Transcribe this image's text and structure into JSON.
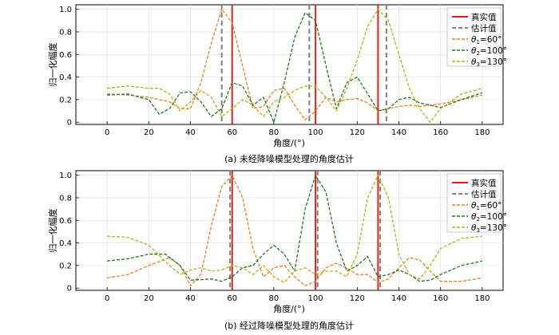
{
  "chart_data": [
    {
      "type": "line",
      "caption": "(a) 未经降噪模型处理的角度估计",
      "xlabel": "角度/(°)",
      "ylabel": "归一化幅度",
      "xlim": [
        -15,
        190
      ],
      "ylim": [
        -0.02,
        1.04
      ],
      "xticks": [
        "0",
        "20",
        "40",
        "60",
        "80",
        "100",
        "120",
        "140",
        "160",
        "180"
      ],
      "yticks": [
        "0",
        "0.2",
        "0.4",
        "0.6",
        "0.8",
        "1.0"
      ],
      "legend_position": "top-right",
      "legend": {
        "true_label": "真实值",
        "est_label": "估计值",
        "series_labels": [
          {
            "sym": "θ",
            "sub": "1",
            "rest": "=60°"
          },
          {
            "sym": "θ",
            "sub": "2",
            "rest": "=100°"
          },
          {
            "sym": "θ",
            "sub": "3",
            "rest": "=130°"
          }
        ]
      },
      "true_values": [
        60,
        100,
        130
      ],
      "estimated_values": [
        55,
        97,
        134
      ],
      "series": [
        {
          "color": "#f07f1a",
          "points": [
            [
              0,
              0.25
            ],
            [
              10,
              0.24
            ],
            [
              20,
              0.22
            ],
            [
              30,
              0.18
            ],
            [
              35,
              0.12
            ],
            [
              40,
              0.12
            ],
            [
              45,
              0.35
            ],
            [
              50,
              0.7
            ],
            [
              55,
              1.0
            ],
            [
              60,
              0.88
            ],
            [
              65,
              0.5
            ],
            [
              70,
              0.12
            ],
            [
              75,
              0.14
            ],
            [
              80,
              0.28
            ],
            [
              85,
              0.3
            ],
            [
              90,
              0.15
            ],
            [
              95,
              0.02
            ],
            [
              100,
              0.1
            ],
            [
              105,
              0.22
            ],
            [
              110,
              0.18
            ],
            [
              115,
              0.2
            ],
            [
              120,
              0.21
            ],
            [
              125,
              0.17
            ],
            [
              130,
              0.1
            ],
            [
              135,
              0.12
            ],
            [
              140,
              0.14
            ],
            [
              145,
              0.15
            ],
            [
              150,
              0.14
            ],
            [
              155,
              0.15
            ],
            [
              160,
              0.16
            ],
            [
              170,
              0.2
            ],
            [
              180,
              0.24
            ]
          ]
        },
        {
          "color": "#1f7a1f",
          "points": [
            [
              0,
              0.24
            ],
            [
              10,
              0.25
            ],
            [
              20,
              0.2
            ],
            [
              25,
              0.07
            ],
            [
              30,
              0.12
            ],
            [
              35,
              0.26
            ],
            [
              40,
              0.27
            ],
            [
              45,
              0.18
            ],
            [
              50,
              0.05
            ],
            [
              55,
              0.12
            ],
            [
              60,
              0.35
            ],
            [
              65,
              0.32
            ],
            [
              70,
              0.15
            ],
            [
              75,
              0.22
            ],
            [
              80,
              0.0
            ],
            [
              85,
              0.35
            ],
            [
              90,
              0.75
            ],
            [
              95,
              0.97
            ],
            [
              100,
              0.9
            ],
            [
              105,
              0.5
            ],
            [
              110,
              0.12
            ],
            [
              115,
              0.35
            ],
            [
              120,
              0.4
            ],
            [
              125,
              0.25
            ],
            [
              130,
              0.1
            ],
            [
              135,
              0.12
            ],
            [
              140,
              0.2
            ],
            [
              145,
              0.22
            ],
            [
              150,
              0.17
            ],
            [
              160,
              0.13
            ],
            [
              170,
              0.2
            ],
            [
              180,
              0.26
            ]
          ]
        },
        {
          "color": "#b5b512",
          "points": [
            [
              0,
              0.3
            ],
            [
              10,
              0.32
            ],
            [
              20,
              0.3
            ],
            [
              25,
              0.3
            ],
            [
              30,
              0.25
            ],
            [
              35,
              0.1
            ],
            [
              40,
              0.18
            ],
            [
              45,
              0.28
            ],
            [
              50,
              0.22
            ],
            [
              55,
              0.05
            ],
            [
              60,
              0.12
            ],
            [
              65,
              0.2
            ],
            [
              70,
              0.15
            ],
            [
              75,
              0.05
            ],
            [
              80,
              0.18
            ],
            [
              85,
              0.22
            ],
            [
              90,
              0.28
            ],
            [
              95,
              0.32
            ],
            [
              100,
              0.32
            ],
            [
              105,
              0.22
            ],
            [
              110,
              0.1
            ],
            [
              115,
              0.3
            ],
            [
              120,
              0.55
            ],
            [
              125,
              0.85
            ],
            [
              130,
              1.0
            ],
            [
              135,
              0.9
            ],
            [
              140,
              0.6
            ],
            [
              145,
              0.3
            ],
            [
              150,
              0.12
            ],
            [
              155,
              0.0
            ],
            [
              160,
              0.12
            ],
            [
              170,
              0.25
            ],
            [
              180,
              0.3
            ]
          ]
        }
      ]
    },
    {
      "type": "line",
      "caption": "(b) 经过降噪模型处理的角度估计",
      "xlabel": "角度/(°)",
      "ylabel": "归一化幅度",
      "xlim": [
        -15,
        190
      ],
      "ylim": [
        -0.02,
        1.04
      ],
      "xticks": [
        "0",
        "20",
        "40",
        "60",
        "80",
        "100",
        "120",
        "140",
        "160",
        "180"
      ],
      "yticks": [
        "0",
        "0.2",
        "0.4",
        "0.6",
        "0.8",
        "1.0"
      ],
      "legend_position": "top-right",
      "legend": {
        "true_label": "真实值",
        "est_label": "估计值",
        "series_labels": [
          {
            "sym": "θ",
            "sub": "1",
            "rest": "=60°"
          },
          {
            "sym": "θ",
            "sub": "2",
            "rest": "=100°"
          },
          {
            "sym": "θ",
            "sub": "3",
            "rest": "=130°"
          }
        ]
      },
      "true_values": [
        60,
        100,
        130
      ],
      "estimated_values": [
        59,
        101,
        131
      ],
      "series": [
        {
          "color": "#f07f1a",
          "points": [
            [
              0,
              0.09
            ],
            [
              10,
              0.12
            ],
            [
              20,
              0.2
            ],
            [
              30,
              0.27
            ],
            [
              35,
              0.2
            ],
            [
              40,
              0.02
            ],
            [
              45,
              0.12
            ],
            [
              50,
              0.55
            ],
            [
              55,
              0.9
            ],
            [
              60,
              1.0
            ],
            [
              65,
              0.8
            ],
            [
              70,
              0.35
            ],
            [
              75,
              0.1
            ],
            [
              80,
              0.18
            ],
            [
              85,
              0.2
            ],
            [
              90,
              0.1
            ],
            [
              95,
              0.02
            ],
            [
              100,
              0.06
            ],
            [
              105,
              0.18
            ],
            [
              110,
              0.22
            ],
            [
              115,
              0.18
            ],
            [
              120,
              0.12
            ],
            [
              125,
              0.12
            ],
            [
              130,
              0.05
            ],
            [
              135,
              0.08
            ],
            [
              140,
              0.18
            ],
            [
              145,
              0.27
            ],
            [
              150,
              0.25
            ],
            [
              155,
              0.15
            ],
            [
              160,
              0.06
            ],
            [
              170,
              0.06
            ],
            [
              180,
              0.09
            ]
          ]
        },
        {
          "color": "#1f7a1f",
          "points": [
            [
              0,
              0.24
            ],
            [
              10,
              0.26
            ],
            [
              20,
              0.3
            ],
            [
              28,
              0.3
            ],
            [
              35,
              0.2
            ],
            [
              40,
              0.07
            ],
            [
              50,
              0.08
            ],
            [
              55,
              0.06
            ],
            [
              60,
              0.1
            ],
            [
              65,
              0.18
            ],
            [
              70,
              0.2
            ],
            [
              75,
              0.3
            ],
            [
              80,
              0.38
            ],
            [
              85,
              0.3
            ],
            [
              90,
              0.15
            ],
            [
              95,
              0.7
            ],
            [
              100,
              1.0
            ],
            [
              105,
              0.85
            ],
            [
              110,
              0.4
            ],
            [
              115,
              0.15
            ],
            [
              120,
              0.2
            ],
            [
              125,
              0.28
            ],
            [
              130,
              0.1
            ],
            [
              135,
              0.12
            ],
            [
              140,
              0.16
            ],
            [
              145,
              0.12
            ],
            [
              150,
              0.06
            ],
            [
              155,
              0.07
            ],
            [
              160,
              0.12
            ],
            [
              170,
              0.2
            ],
            [
              180,
              0.24
            ]
          ]
        },
        {
          "color": "#b5b512",
          "points": [
            [
              0,
              0.46
            ],
            [
              10,
              0.45
            ],
            [
              20,
              0.38
            ],
            [
              30,
              0.2
            ],
            [
              35,
              0.12
            ],
            [
              40,
              0.16
            ],
            [
              45,
              0.18
            ],
            [
              50,
              0.15
            ],
            [
              55,
              0.16
            ],
            [
              60,
              0.2
            ],
            [
              65,
              0.18
            ],
            [
              70,
              0.12
            ],
            [
              75,
              0.2
            ],
            [
              80,
              0.1
            ],
            [
              85,
              0.05
            ],
            [
              90,
              0.15
            ],
            [
              95,
              0.18
            ],
            [
              100,
              0.12
            ],
            [
              105,
              0.15
            ],
            [
              110,
              0.15
            ],
            [
              115,
              0.1
            ],
            [
              120,
              0.3
            ],
            [
              125,
              0.8
            ],
            [
              130,
              1.0
            ],
            [
              135,
              0.8
            ],
            [
              140,
              0.3
            ],
            [
              145,
              0.12
            ],
            [
              150,
              0.08
            ],
            [
              155,
              0.2
            ],
            [
              160,
              0.35
            ],
            [
              170,
              0.44
            ],
            [
              180,
              0.46
            ]
          ]
        }
      ]
    }
  ]
}
